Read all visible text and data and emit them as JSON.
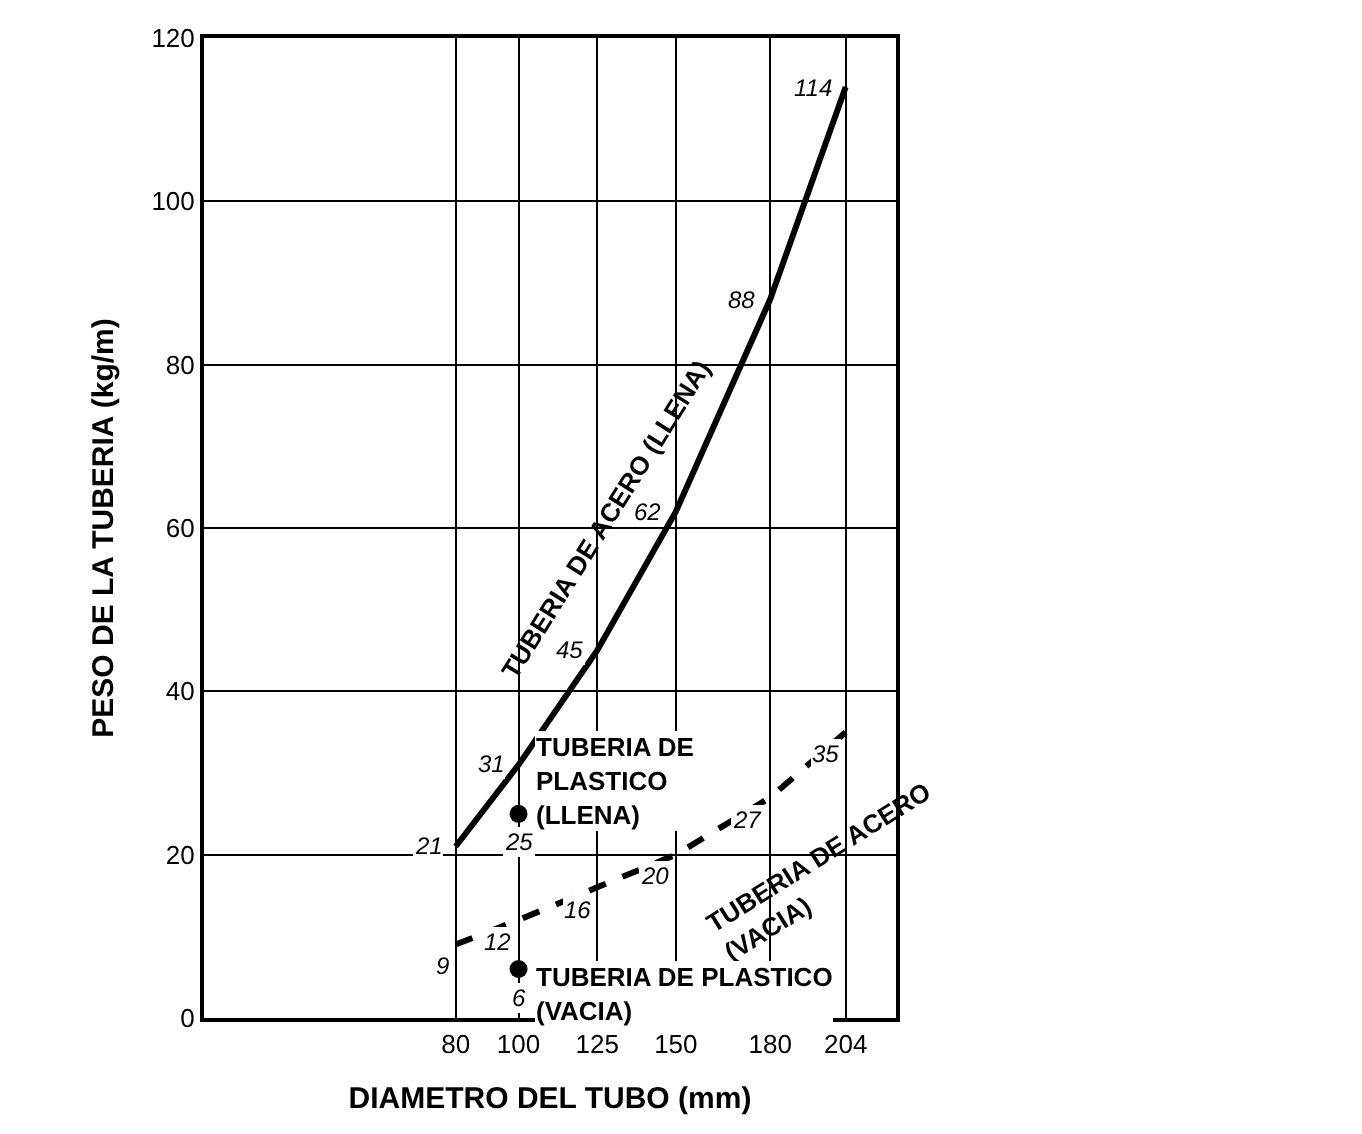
{
  "chart_data": {
    "type": "line",
    "xlabel": "DIAMETRO DEL TUBO (mm)",
    "ylabel": "PESO DE LA TUBERIA (kg/m)",
    "xlim": [
      0,
      220
    ],
    "xticks": [
      80,
      100,
      125,
      150,
      180,
      204
    ],
    "ylim": [
      0,
      120
    ],
    "yticks": [
      0,
      20,
      40,
      60,
      80,
      100,
      120
    ],
    "grid": true,
    "legend": false,
    "data_labels": true,
    "series": [
      {
        "name": "TUBERIA DE ACERO (LLENA)",
        "color": "#000000",
        "line_style": "solid",
        "marker": "none",
        "x": [
          80,
          100,
          125,
          150,
          180,
          204
        ],
        "values": [
          21,
          31,
          45,
          62,
          88,
          114
        ]
      },
      {
        "name": "TUBERIA DE ACERO\n(VACIA)",
        "color": "#000000",
        "line_style": "dashed",
        "marker": "none",
        "x": [
          80,
          100,
          125,
          150,
          180,
          204
        ],
        "values": [
          9,
          12,
          16,
          20,
          27,
          35
        ]
      },
      {
        "name": "TUBERIA DE\nPLASTICO\n(LLENA)",
        "color": "#000000",
        "type": "scatter",
        "marker": "circle",
        "x": [
          100
        ],
        "values": [
          25
        ]
      },
      {
        "name": "TUBERIA DE PLASTICO\n(VACIA)",
        "color": "#000000",
        "type": "scatter",
        "marker": "circle",
        "x": [
          100
        ],
        "values": [
          6
        ]
      }
    ]
  }
}
